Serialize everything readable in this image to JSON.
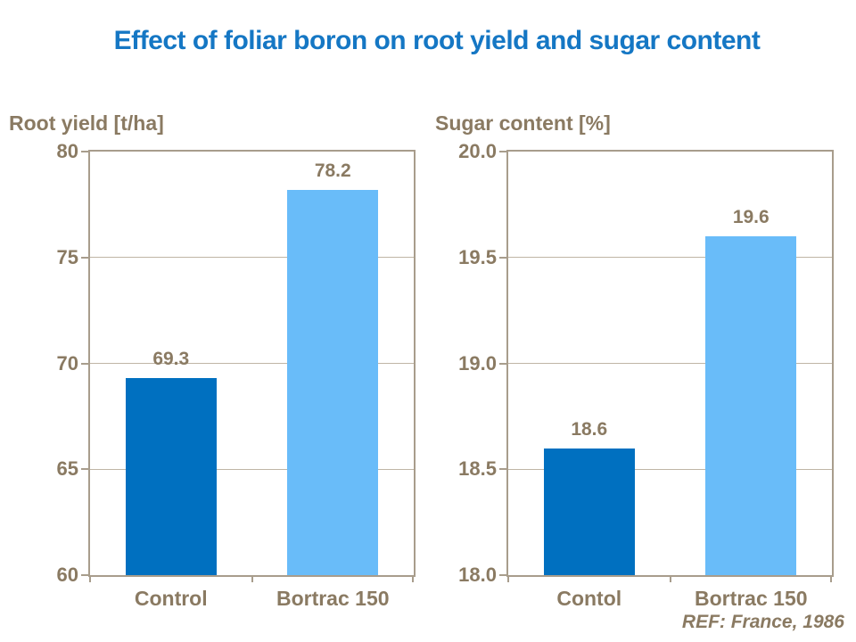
{
  "page": {
    "background": "#FFFFFF"
  },
  "title": {
    "text": "Effect of foliar boron on root yield and sugar content",
    "color": "#1577C4"
  },
  "reference": {
    "text": "REF: France, 1986"
  },
  "colors": {
    "axis_text": "#8A7A62",
    "frame_line": "#A89D8C",
    "gridline": "#BFB5A5",
    "bar_dark_blue": "#0070C0",
    "bar_light_blue": "#69BCF9"
  },
  "chart_data": [
    {
      "type": "bar",
      "title": "Root yield [t/ha]",
      "categories": [
        "Control",
        "Bortrac 150"
      ],
      "values": [
        69.3,
        78.2
      ],
      "data_labels": [
        "69.3",
        "78.2"
      ],
      "bar_colors": [
        "#0070C0",
        "#69BCF9"
      ],
      "ylim": [
        60,
        80
      ],
      "yticks": [
        {
          "value": 80,
          "label": "80"
        },
        {
          "value": 75,
          "label": "75"
        },
        {
          "value": 70,
          "label": "70"
        },
        {
          "value": 65,
          "label": "65"
        },
        {
          "value": 60,
          "label": "60"
        }
      ],
      "grid": true,
      "legend_position": "none"
    },
    {
      "type": "bar",
      "title": "Sugar content [%]",
      "categories": [
        "Contol",
        "Bortrac 150"
      ],
      "values": [
        18.6,
        19.6
      ],
      "data_labels": [
        "18.6",
        "19.6"
      ],
      "bar_colors": [
        "#0070C0",
        "#69BCF9"
      ],
      "ylim": [
        18.0,
        20.0
      ],
      "yticks": [
        {
          "value": 20.0,
          "label": "20.0"
        },
        {
          "value": 19.5,
          "label": "19.5"
        },
        {
          "value": 19.0,
          "label": "19.0"
        },
        {
          "value": 18.5,
          "label": "18.5"
        },
        {
          "value": 18.0,
          "label": "18.0"
        }
      ],
      "grid": true,
      "legend_position": "none"
    }
  ]
}
